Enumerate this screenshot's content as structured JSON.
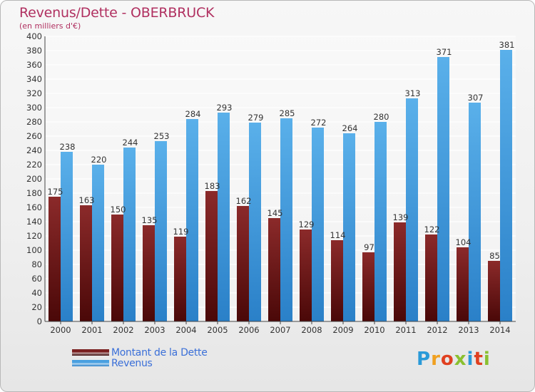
{
  "header": {
    "title": "Revenus/Dette - OBERBRUCK",
    "subtitle": "(en milliers d'€)"
  },
  "legend": {
    "items": [
      {
        "label": "Montant de la Dette",
        "color": "#7a1f1f"
      },
      {
        "label": "Revenus",
        "color": "#4aa0e0"
      }
    ]
  },
  "logo": {
    "letters": [
      "P",
      "r",
      "o",
      "x",
      "i",
      "t",
      "i"
    ],
    "colors": [
      "#2a9ad8",
      "#f0a020",
      "#e04020",
      "#8ac030",
      "#2a9ad8",
      "#e04020",
      "#8ac030"
    ]
  },
  "chart_data": {
    "type": "bar",
    "categories": [
      "2000",
      "2001",
      "2002",
      "2003",
      "2004",
      "2005",
      "2006",
      "2007",
      "2008",
      "2009",
      "2010",
      "2011",
      "2012",
      "2013",
      "2014"
    ],
    "series": [
      {
        "name": "Montant de la Dette",
        "values": [
          175,
          163,
          150,
          135,
          119,
          183,
          162,
          145,
          129,
          114,
          97,
          139,
          122,
          104,
          85
        ],
        "color": "#7a1f1f"
      },
      {
        "name": "Revenus",
        "values": [
          238,
          220,
          244,
          253,
          284,
          293,
          279,
          285,
          272,
          264,
          280,
          313,
          371,
          307,
          381
        ],
        "color": "#4aa0e0"
      }
    ],
    "ylim": [
      0,
      400
    ],
    "yticks": [
      0,
      20,
      40,
      60,
      80,
      100,
      120,
      140,
      160,
      180,
      200,
      220,
      240,
      260,
      280,
      300,
      320,
      340,
      360,
      380,
      400
    ],
    "grid": true,
    "legend": "bottom-left"
  }
}
